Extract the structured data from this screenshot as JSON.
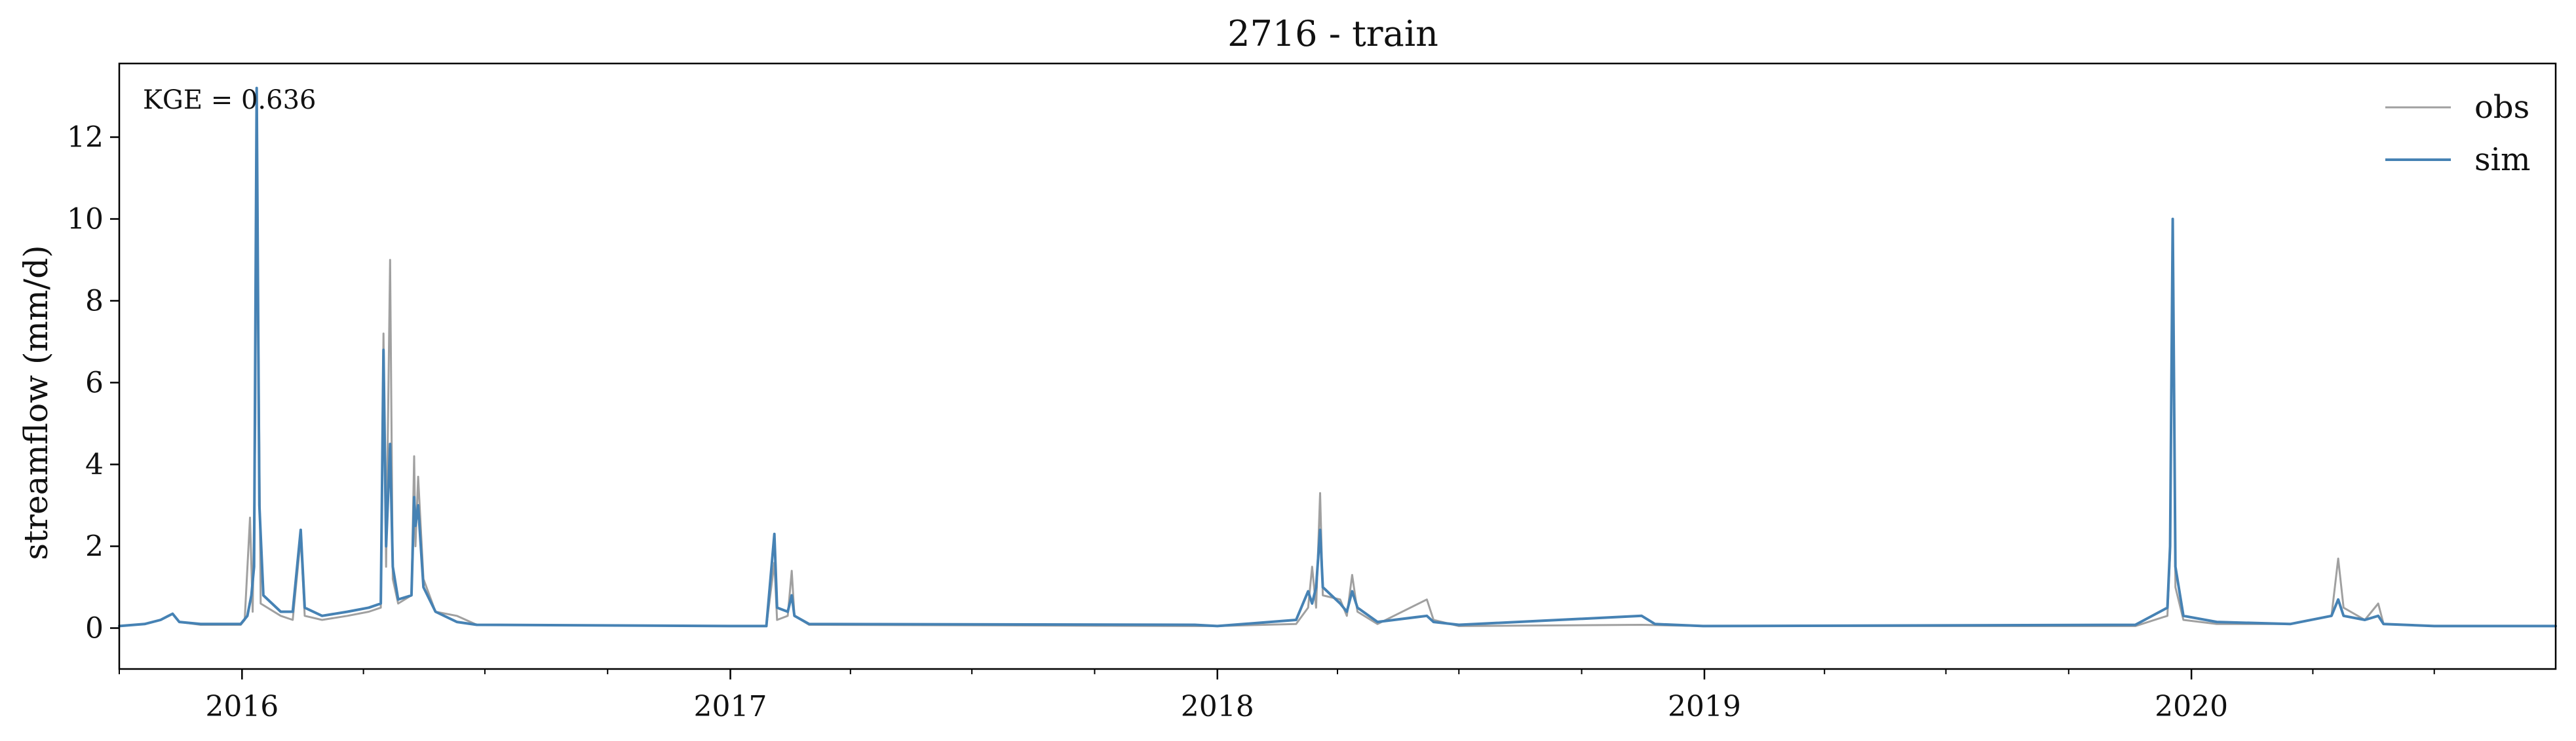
{
  "chart_data": {
    "type": "line",
    "title": "2716 - train",
    "ylabel": "streamflow (mm/d)",
    "xlabel": "",
    "annotation": "KGE = 0.636",
    "x_range": [
      "2015-10-01",
      "2020-09-30"
    ],
    "ylim": [
      -1.0,
      13.8
    ],
    "yticks": [
      0,
      2,
      4,
      6,
      8,
      10,
      12
    ],
    "ytick_labels": [
      "0",
      "2",
      "4",
      "6",
      "8",
      "10",
      "12"
    ],
    "xticks": [
      "2016-01-01",
      "2017-01-01",
      "2018-01-01",
      "2019-01-01",
      "2020-01-01"
    ],
    "xtick_labels": [
      "2016",
      "2017",
      "2018",
      "2019",
      "2020"
    ],
    "grid": false,
    "legend_position": "top-right",
    "series": [
      {
        "name": "obs",
        "color": "#a0a0a0",
        "points": [
          [
            "2015-10-01",
            0.05
          ],
          [
            "2015-10-20",
            0.1
          ],
          [
            "2015-11-01",
            0.2
          ],
          [
            "2015-11-10",
            0.35
          ],
          [
            "2015-11-15",
            0.15
          ],
          [
            "2015-12-01",
            0.08
          ],
          [
            "2015-12-31",
            0.08
          ],
          [
            "2016-01-03",
            0.2
          ],
          [
            "2016-01-07",
            2.7
          ],
          [
            "2016-01-09",
            0.4
          ],
          [
            "2016-01-11",
            5.0
          ],
          [
            "2016-01-12",
            13.1
          ],
          [
            "2016-01-13",
            8.0
          ],
          [
            "2016-01-15",
            0.6
          ],
          [
            "2016-01-30",
            0.3
          ],
          [
            "2016-02-08",
            0.2
          ],
          [
            "2016-02-14",
            2.2
          ],
          [
            "2016-02-17",
            0.3
          ],
          [
            "2016-03-01",
            0.2
          ],
          [
            "2016-03-20",
            0.3
          ],
          [
            "2016-04-05",
            0.4
          ],
          [
            "2016-04-14",
            0.5
          ],
          [
            "2016-04-16",
            7.2
          ],
          [
            "2016-04-18",
            1.5
          ],
          [
            "2016-04-21",
            9.0
          ],
          [
            "2016-04-23",
            1.2
          ],
          [
            "2016-04-27",
            0.6
          ],
          [
            "2016-05-07",
            0.8
          ],
          [
            "2016-05-09",
            4.2
          ],
          [
            "2016-05-10",
            2.0
          ],
          [
            "2016-05-12",
            3.7
          ],
          [
            "2016-05-16",
            1.2
          ],
          [
            "2016-05-25",
            0.4
          ],
          [
            "2016-06-10",
            0.3
          ],
          [
            "2016-06-25",
            0.08
          ],
          [
            "2016-12-31",
            0.05
          ],
          [
            "2017-01-28",
            0.05
          ],
          [
            "2017-02-03",
            1.6
          ],
          [
            "2017-02-05",
            0.2
          ],
          [
            "2017-02-13",
            0.3
          ],
          [
            "2017-02-16",
            1.4
          ],
          [
            "2017-02-18",
            0.3
          ],
          [
            "2017-03-01",
            0.08
          ],
          [
            "2017-12-15",
            0.05
          ],
          [
            "2018-01-01",
            0.05
          ],
          [
            "2018-03-01",
            0.1
          ],
          [
            "2018-03-10",
            0.5
          ],
          [
            "2018-03-13",
            1.5
          ],
          [
            "2018-03-16",
            0.5
          ],
          [
            "2018-03-19",
            3.3
          ],
          [
            "2018-03-21",
            0.8
          ],
          [
            "2018-04-03",
            0.7
          ],
          [
            "2018-04-08",
            0.3
          ],
          [
            "2018-04-12",
            1.3
          ],
          [
            "2018-04-16",
            0.4
          ],
          [
            "2018-05-01",
            0.1
          ],
          [
            "2018-06-07",
            0.7
          ],
          [
            "2018-06-12",
            0.2
          ],
          [
            "2018-07-01",
            0.05
          ],
          [
            "2018-11-15",
            0.08
          ],
          [
            "2018-12-31",
            0.05
          ],
          [
            "2019-11-20",
            0.05
          ],
          [
            "2019-12-14",
            0.3
          ],
          [
            "2019-12-16",
            1.8
          ],
          [
            "2019-12-18",
            9.8
          ],
          [
            "2019-12-20",
            1.0
          ],
          [
            "2019-12-26",
            0.2
          ],
          [
            "2020-01-20",
            0.1
          ],
          [
            "2020-03-15",
            0.1
          ],
          [
            "2020-04-15",
            0.3
          ],
          [
            "2020-04-20",
            1.7
          ],
          [
            "2020-04-24",
            0.5
          ],
          [
            "2020-05-10",
            0.2
          ],
          [
            "2020-05-20",
            0.6
          ],
          [
            "2020-05-24",
            0.1
          ],
          [
            "2020-07-01",
            0.05
          ],
          [
            "2020-09-30",
            0.05
          ]
        ]
      },
      {
        "name": "sim",
        "color": "#4682b4",
        "points": [
          [
            "2015-10-01",
            0.05
          ],
          [
            "2015-10-20",
            0.1
          ],
          [
            "2015-11-01",
            0.2
          ],
          [
            "2015-11-10",
            0.35
          ],
          [
            "2015-11-15",
            0.15
          ],
          [
            "2015-12-01",
            0.1
          ],
          [
            "2015-12-31",
            0.1
          ],
          [
            "2016-01-05",
            0.3
          ],
          [
            "2016-01-08",
            0.8
          ],
          [
            "2016-01-10",
            1.5
          ],
          [
            "2016-01-12",
            13.2
          ],
          [
            "2016-01-14",
            3.0
          ],
          [
            "2016-01-17",
            0.8
          ],
          [
            "2016-01-30",
            0.4
          ],
          [
            "2016-02-08",
            0.4
          ],
          [
            "2016-02-14",
            2.4
          ],
          [
            "2016-02-17",
            0.5
          ],
          [
            "2016-03-01",
            0.3
          ],
          [
            "2016-03-20",
            0.4
          ],
          [
            "2016-04-05",
            0.5
          ],
          [
            "2016-04-14",
            0.6
          ],
          [
            "2016-04-16",
            6.8
          ],
          [
            "2016-04-18",
            2.0
          ],
          [
            "2016-04-21",
            4.5
          ],
          [
            "2016-04-23",
            1.5
          ],
          [
            "2016-04-27",
            0.7
          ],
          [
            "2016-05-07",
            0.8
          ],
          [
            "2016-05-09",
            3.2
          ],
          [
            "2016-05-10",
            2.5
          ],
          [
            "2016-05-12",
            3.0
          ],
          [
            "2016-05-16",
            1.0
          ],
          [
            "2016-05-25",
            0.4
          ],
          [
            "2016-06-10",
            0.15
          ],
          [
            "2016-06-25",
            0.08
          ],
          [
            "2016-12-31",
            0.05
          ],
          [
            "2017-01-28",
            0.05
          ],
          [
            "2017-02-03",
            2.3
          ],
          [
            "2017-02-05",
            0.5
          ],
          [
            "2017-02-13",
            0.4
          ],
          [
            "2017-02-16",
            0.8
          ],
          [
            "2017-02-18",
            0.3
          ],
          [
            "2017-03-01",
            0.1
          ],
          [
            "2017-12-15",
            0.08
          ],
          [
            "2018-01-01",
            0.05
          ],
          [
            "2018-03-01",
            0.2
          ],
          [
            "2018-03-10",
            0.9
          ],
          [
            "2018-03-13",
            0.6
          ],
          [
            "2018-03-16",
            1.0
          ],
          [
            "2018-03-19",
            2.4
          ],
          [
            "2018-03-21",
            1.0
          ],
          [
            "2018-04-03",
            0.6
          ],
          [
            "2018-04-08",
            0.4
          ],
          [
            "2018-04-12",
            0.9
          ],
          [
            "2018-04-16",
            0.5
          ],
          [
            "2018-05-01",
            0.15
          ],
          [
            "2018-06-07",
            0.3
          ],
          [
            "2018-06-12",
            0.15
          ],
          [
            "2018-07-01",
            0.08
          ],
          [
            "2018-11-15",
            0.3
          ],
          [
            "2018-11-25",
            0.1
          ],
          [
            "2018-12-31",
            0.05
          ],
          [
            "2019-11-20",
            0.08
          ],
          [
            "2019-12-14",
            0.5
          ],
          [
            "2019-12-16",
            2.0
          ],
          [
            "2019-12-18",
            10.0
          ],
          [
            "2019-12-20",
            1.5
          ],
          [
            "2019-12-26",
            0.3
          ],
          [
            "2020-01-20",
            0.15
          ],
          [
            "2020-03-15",
            0.1
          ],
          [
            "2020-04-15",
            0.3
          ],
          [
            "2020-04-20",
            0.7
          ],
          [
            "2020-04-24",
            0.3
          ],
          [
            "2020-05-10",
            0.2
          ],
          [
            "2020-05-20",
            0.3
          ],
          [
            "2020-05-24",
            0.1
          ],
          [
            "2020-07-01",
            0.05
          ],
          [
            "2020-09-30",
            0.05
          ]
        ]
      }
    ]
  }
}
